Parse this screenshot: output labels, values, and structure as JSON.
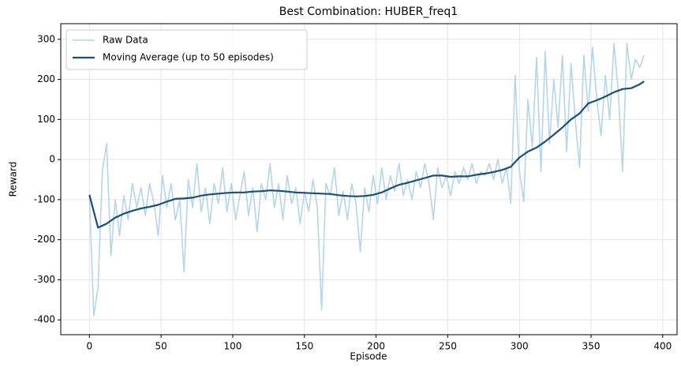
{
  "chart_data": {
    "type": "line",
    "title": "Best Combination: HUBER_freq1",
    "x_label": "Episode",
    "y_label": "Reward",
    "xlim": [
      -20,
      410
    ],
    "xticks": [
      0,
      50,
      100,
      150,
      200,
      250,
      300,
      350,
      400
    ],
    "ylim": [
      -437,
      339
    ],
    "yticks": [
      -400,
      -300,
      -200,
      -100,
      0,
      100,
      200,
      300
    ],
    "grid": true,
    "legend": "upper left",
    "series": [
      {
        "name": "Raw Data",
        "color": "#b4d5ea",
        "x": [
          0,
          3,
          6,
          9,
          12,
          15,
          18,
          21,
          24,
          27,
          30,
          33,
          36,
          39,
          42,
          45,
          48,
          51,
          54,
          57,
          60,
          63,
          66,
          69,
          72,
          75,
          78,
          81,
          84,
          87,
          90,
          93,
          96,
          99,
          102,
          105,
          108,
          111,
          114,
          117,
          120,
          123,
          126,
          129,
          132,
          135,
          138,
          141,
          144,
          147,
          150,
          153,
          156,
          159,
          162,
          165,
          168,
          171,
          174,
          177,
          180,
          183,
          186,
          189,
          192,
          195,
          198,
          201,
          204,
          207,
          210,
          213,
          216,
          219,
          222,
          225,
          228,
          231,
          234,
          237,
          240,
          243,
          246,
          249,
          252,
          255,
          258,
          261,
          264,
          267,
          270,
          273,
          276,
          279,
          282,
          285,
          288,
          291,
          294,
          297,
          300,
          303,
          306,
          309,
          312,
          315,
          318,
          321,
          324,
          327,
          330,
          333,
          336,
          339,
          342,
          345,
          348,
          351,
          354,
          357,
          360,
          363,
          366,
          369,
          372,
          375,
          378,
          381,
          384,
          387
        ],
        "values": [
          -88,
          -390,
          -320,
          -30,
          40,
          -240,
          -100,
          -190,
          -90,
          -150,
          -60,
          -120,
          -70,
          -140,
          -60,
          -110,
          -190,
          -40,
          -120,
          -60,
          -150,
          -100,
          -280,
          -50,
          -120,
          -10,
          -130,
          -70,
          -160,
          -60,
          -110,
          -20,
          -130,
          -60,
          -150,
          -90,
          -30,
          -140,
          -70,
          -180,
          -60,
          -100,
          -10,
          -120,
          -60,
          -150,
          -40,
          -110,
          -70,
          -160,
          -80,
          -130,
          -50,
          -120,
          -375,
          -60,
          -90,
          -20,
          -140,
          -80,
          -150,
          -60,
          -110,
          -230,
          -70,
          -130,
          -40,
          -110,
          -20,
          -100,
          -40,
          -80,
          -10,
          -90,
          -50,
          -100,
          -30,
          -70,
          -10,
          -60,
          -150,
          -20,
          -70,
          -40,
          -90,
          -30,
          -60,
          -20,
          -50,
          -10,
          -60,
          -30,
          -40,
          -10,
          -50,
          0,
          -60,
          -20,
          -110,
          210,
          -30,
          -105,
          150,
          30,
          255,
          -30,
          270,
          40,
          200,
          80,
          260,
          20,
          240,
          100,
          -20,
          260,
          120,
          280,
          150,
          60,
          210,
          100,
          290,
          170,
          -30,
          290,
          200,
          250,
          230,
          260
        ]
      },
      {
        "name": "Moving Average (up to 50 episodes)",
        "color": "#1b4f72",
        "x": [
          0,
          6,
          12,
          18,
          24,
          30,
          36,
          42,
          48,
          54,
          60,
          66,
          72,
          78,
          84,
          90,
          96,
          102,
          108,
          114,
          120,
          126,
          132,
          138,
          144,
          150,
          156,
          162,
          168,
          174,
          180,
          186,
          192,
          198,
          204,
          210,
          216,
          222,
          228,
          234,
          240,
          246,
          252,
          258,
          264,
          270,
          276,
          282,
          288,
          294,
          300,
          306,
          312,
          318,
          324,
          330,
          336,
          342,
          348,
          354,
          360,
          366,
          372,
          378,
          384,
          387
        ],
        "values": [
          -88,
          -170,
          -160,
          -145,
          -135,
          -128,
          -122,
          -118,
          -113,
          -105,
          -98,
          -97,
          -95,
          -90,
          -87,
          -85,
          -83,
          -82,
          -82,
          -80,
          -79,
          -77,
          -78,
          -80,
          -82,
          -83,
          -84,
          -85,
          -86,
          -89,
          -91,
          -92,
          -91,
          -88,
          -82,
          -72,
          -63,
          -58,
          -52,
          -46,
          -40,
          -40,
          -43,
          -42,
          -42,
          -38,
          -35,
          -31,
          -26,
          -18,
          5,
          20,
          30,
          45,
          62,
          80,
          100,
          115,
          140,
          148,
          157,
          168,
          176,
          178,
          188,
          195
        ]
      }
    ]
  }
}
